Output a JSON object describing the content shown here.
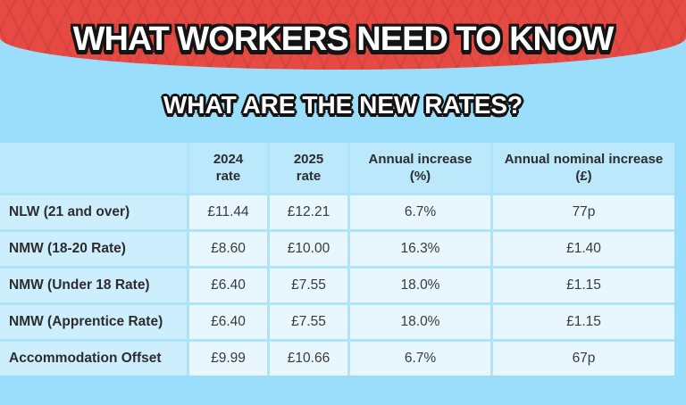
{
  "banner": {
    "title": "WHAT WORKERS NEED TO KNOW"
  },
  "subtitle": "WHAT ARE THE NEW RATES?",
  "colors": {
    "banner_red": "#e64a42",
    "page_blue": "#9bdefb",
    "header_cell_blue": "#bce8fc",
    "label_cell_blue": "#cdeefd",
    "value_cell_blue": "#e8f6fe",
    "text_dark": "#2d2d2d",
    "title_white": "#ffffff",
    "outline_black": "#141414"
  },
  "table": {
    "header_display": [
      {
        "line1": "",
        "line2": ""
      },
      {
        "line1": "2024",
        "line2": "rate"
      },
      {
        "line1": "2025",
        "line2": "rate"
      },
      {
        "line1": "Annual increase",
        "line2": "(%)"
      },
      {
        "line1": "Annual nominal increase",
        "line2": "(£)"
      }
    ]
  },
  "chart_data": {
    "type": "table",
    "title": "WHAT WORKERS NEED TO KNOW",
    "subtitle": "WHAT ARE THE NEW RATES?",
    "columns": [
      "",
      "2024 rate",
      "2025 rate",
      "Annual increase (%)",
      "Annual nominal increase (£)"
    ],
    "rows": [
      [
        "NLW (21 and over)",
        "£11.44",
        "£12.21",
        "6.7%",
        "77p"
      ],
      [
        "NMW (18-20 Rate)",
        "£8.60",
        "£10.00",
        "16.3%",
        "£1.40"
      ],
      [
        "NMW (Under 18 Rate)",
        "£6.40",
        "£7.55",
        "18.0%",
        "£1.15"
      ],
      [
        "NMW (Apprentice Rate)",
        "£6.40",
        "£7.55",
        "18.0%",
        "£1.15"
      ],
      [
        "Accommodation Offset",
        "£9.99",
        "£10.66",
        "6.7%",
        "67p"
      ]
    ]
  }
}
